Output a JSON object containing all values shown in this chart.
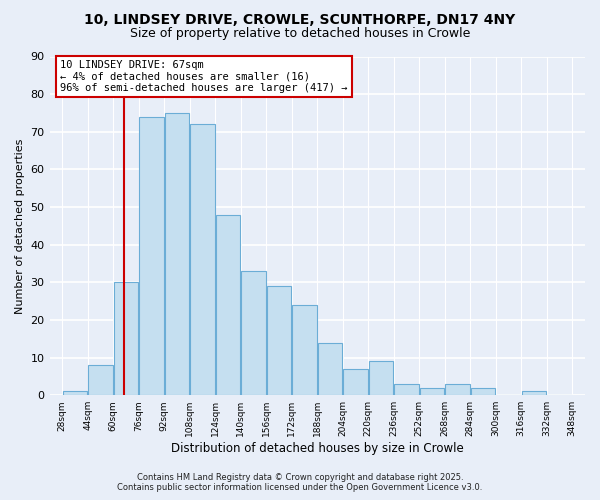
{
  "title_line1": "10, LINDSEY DRIVE, CROWLE, SCUNTHORPE, DN17 4NY",
  "title_line2": "Size of property relative to detached houses in Crowle",
  "xlabel": "Distribution of detached houses by size in Crowle",
  "ylabel": "Number of detached properties",
  "bar_color": "#c5dff0",
  "bar_edge_color": "#6badd6",
  "background_color": "#e8eef8",
  "grid_color": "#ffffff",
  "bins_left": [
    28,
    44,
    60,
    76,
    92,
    108,
    124,
    140,
    156,
    172,
    188,
    204,
    220,
    236,
    252,
    268,
    284,
    300,
    316,
    332
  ],
  "bin_width": 16,
  "counts": [
    1,
    8,
    30,
    74,
    75,
    72,
    48,
    33,
    29,
    24,
    14,
    7,
    9,
    3,
    2,
    3,
    2,
    0,
    1,
    0
  ],
  "xlim_left": 20,
  "xlim_right": 356,
  "ylim_top": 90,
  "ylim_bottom": 0,
  "yticks": [
    0,
    10,
    20,
    30,
    40,
    50,
    60,
    70,
    80,
    90
  ],
  "xtick_labels": [
    "28sqm",
    "44sqm",
    "60sqm",
    "76sqm",
    "92sqm",
    "108sqm",
    "124sqm",
    "140sqm",
    "156sqm",
    "172sqm",
    "188sqm",
    "204sqm",
    "220sqm",
    "236sqm",
    "252sqm",
    "268sqm",
    "284sqm",
    "300sqm",
    "316sqm",
    "332sqm",
    "348sqm"
  ],
  "xtick_positions": [
    28,
    44,
    60,
    76,
    92,
    108,
    124,
    140,
    156,
    172,
    188,
    204,
    220,
    236,
    252,
    268,
    284,
    300,
    316,
    332,
    348
  ],
  "marker_x": 67,
  "marker_label_line1": "10 LINDSEY DRIVE: 67sqm",
  "marker_label_line2": "← 4% of detached houses are smaller (16)",
  "marker_label_line3": "96% of semi-detached houses are larger (417) →",
  "annotation_box_color": "#ffffff",
  "annotation_border_color": "#cc0000",
  "marker_line_color": "#cc0000",
  "footer_line1": "Contains HM Land Registry data © Crown copyright and database right 2025.",
  "footer_line2": "Contains public sector information licensed under the Open Government Licence v3.0."
}
